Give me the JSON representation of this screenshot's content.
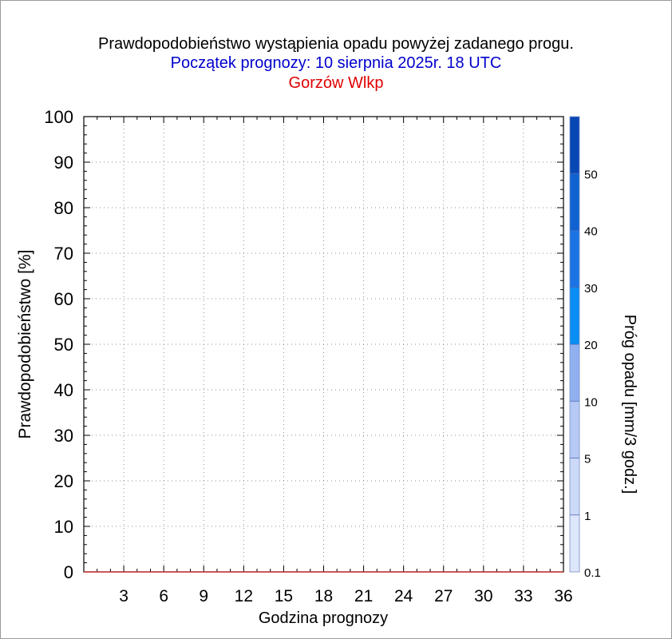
{
  "header": {
    "title": "Prawdopodobieństwo wystąpienia opadu powyżej zadanego progu.",
    "subtitle": "Początek prognozy: 10 sierpnia 2025r. 18 UTC",
    "location": "Gorzów Wlkp"
  },
  "colors": {
    "title": "#000000",
    "subtitle": "#0000cc",
    "location": "#e00000",
    "data_line": "#c83232"
  },
  "chart_data": {
    "type": "line",
    "title": "Prawdopodobieństwo wystąpienia opadu powyżej zadanego progu.",
    "xlabel": "Godzina prognozy",
    "ylabel": "Prawdopodobieństwo [%]",
    "xlim": [
      0,
      36
    ],
    "ylim": [
      0,
      100
    ],
    "x_ticks": [
      3,
      6,
      9,
      12,
      15,
      18,
      21,
      24,
      27,
      30,
      33,
      36
    ],
    "x_tick_labels": [
      "3",
      "6",
      "9",
      "12",
      "15",
      "18",
      "21",
      "24",
      "27",
      "30",
      "33",
      "36"
    ],
    "y_ticks": [
      0,
      10,
      20,
      30,
      40,
      50,
      60,
      70,
      80,
      90,
      100
    ],
    "y_tick_labels": [
      "0",
      "10",
      "20",
      "30",
      "40",
      "50",
      "60",
      "70",
      "80",
      "90",
      "100"
    ],
    "grid": true,
    "series": [
      {
        "x": [
          0,
          3,
          6,
          9,
          12,
          15,
          18,
          21,
          24,
          27,
          30,
          33,
          36
        ],
        "values": [
          0,
          0,
          0,
          0,
          0,
          0,
          0,
          0,
          0,
          0,
          0,
          0,
          0
        ]
      }
    ],
    "colorbar": {
      "label": "Próg opadu [mm/3 godz.]",
      "levels": [
        "0.1",
        "1",
        "5",
        "10",
        "20",
        "30",
        "40",
        "50"
      ],
      "colors": [
        "#dde6fa",
        "#cdd9f8",
        "#b6c8f4",
        "#90b0f0",
        "#0a8ef4",
        "#1c74e4",
        "#0f62d0",
        "#0848b4"
      ]
    }
  }
}
